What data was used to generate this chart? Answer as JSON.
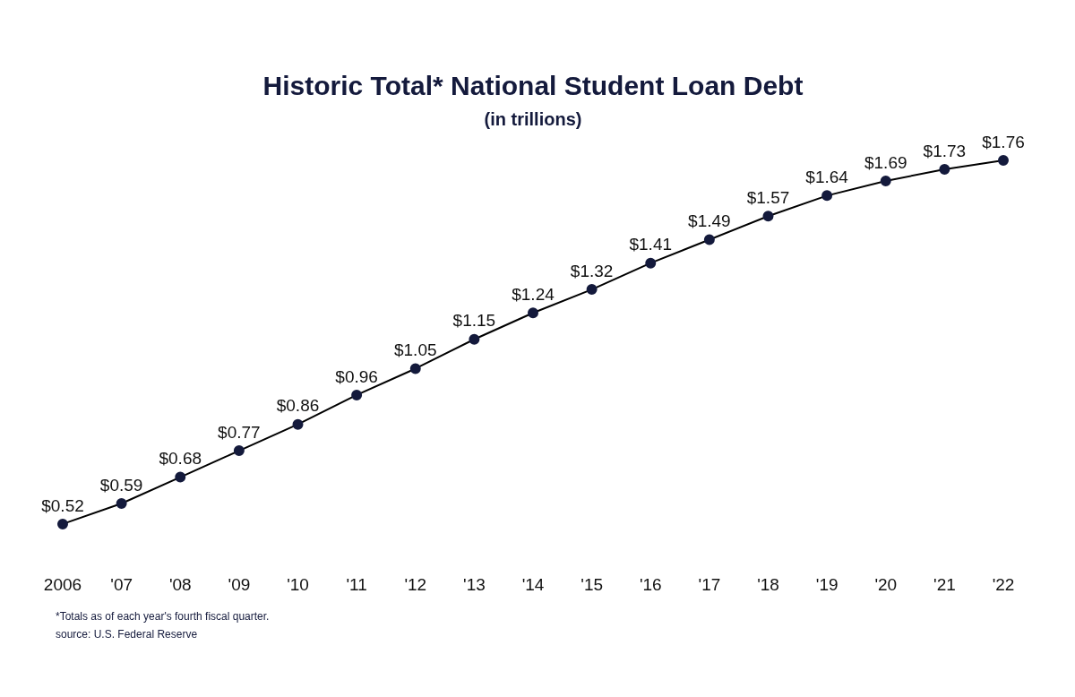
{
  "chart_data": {
    "type": "line",
    "title": "Historic Total* National Student Loan Debt",
    "subtitle": "(in trillions)",
    "categories": [
      "2006",
      "'07",
      "'08",
      "'09",
      "'10",
      "'11",
      "'12",
      "'13",
      "'14",
      "'15",
      "'16",
      "'17",
      "'18",
      "'19",
      "'20",
      "'21",
      "'22"
    ],
    "values": [
      0.52,
      0.59,
      0.68,
      0.77,
      0.86,
      0.96,
      1.05,
      1.15,
      1.24,
      1.32,
      1.41,
      1.49,
      1.57,
      1.64,
      1.69,
      1.73,
      1.76
    ],
    "value_labels": [
      "$0.52",
      "$0.59",
      "$0.68",
      "$0.77",
      "$0.86",
      "$0.96",
      "$1.05",
      "$1.15",
      "$1.24",
      "$1.32",
      "$1.41",
      "$1.49",
      "$1.57",
      "$1.64",
      "$1.69",
      "$1.73",
      "$1.76"
    ],
    "color": "#141a3c",
    "marker": "circle",
    "grid": false,
    "legend": false,
    "tick_labels": "x",
    "annotations": [
      "*Totals as of each year's fourth fiscal quarter.",
      "source: U.S. Federal Reserve"
    ]
  }
}
